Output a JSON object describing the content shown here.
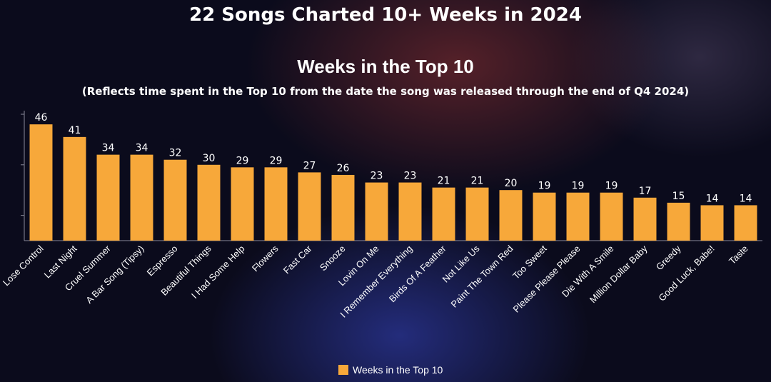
{
  "header": {
    "title": "22 Songs Charted 10+ Weeks in 2024"
  },
  "chart_data": {
    "type": "bar",
    "title": "Weeks in the Top 10",
    "subtitle": "(Reflects time spent in the Top 10 from the date the song was released through the end of Q4 2024)",
    "xlabel": "",
    "ylabel": "",
    "ylim": [
      0,
      50
    ],
    "grid": false,
    "legend_position": "bottom",
    "bar_color": "#f7a83a",
    "series": [
      {
        "name": "Weeks in the Top 10",
        "values": [
          46,
          41,
          34,
          34,
          32,
          30,
          29,
          29,
          27,
          26,
          23,
          23,
          21,
          21,
          20,
          19,
          19,
          19,
          17,
          15,
          14,
          14
        ]
      }
    ],
    "categories": [
      "Lose Control",
      "Last Night",
      "Cruel Summer",
      "A Bar Song (Tipsy)",
      "Espresso",
      "Beautiful Things",
      "I Had Some Help",
      "Flowers",
      "Fast Car",
      "Snooze",
      "Lovin On Me",
      "I Remember Everything",
      "Birds Of A Feather",
      "Not Like Us",
      "Paint The Town Red",
      "Too Sweet",
      "Please Please Please",
      "Die With A Smile",
      "Million Dollar Baby",
      "Greedy",
      "Good Luck, Babe!",
      "Taste"
    ]
  }
}
